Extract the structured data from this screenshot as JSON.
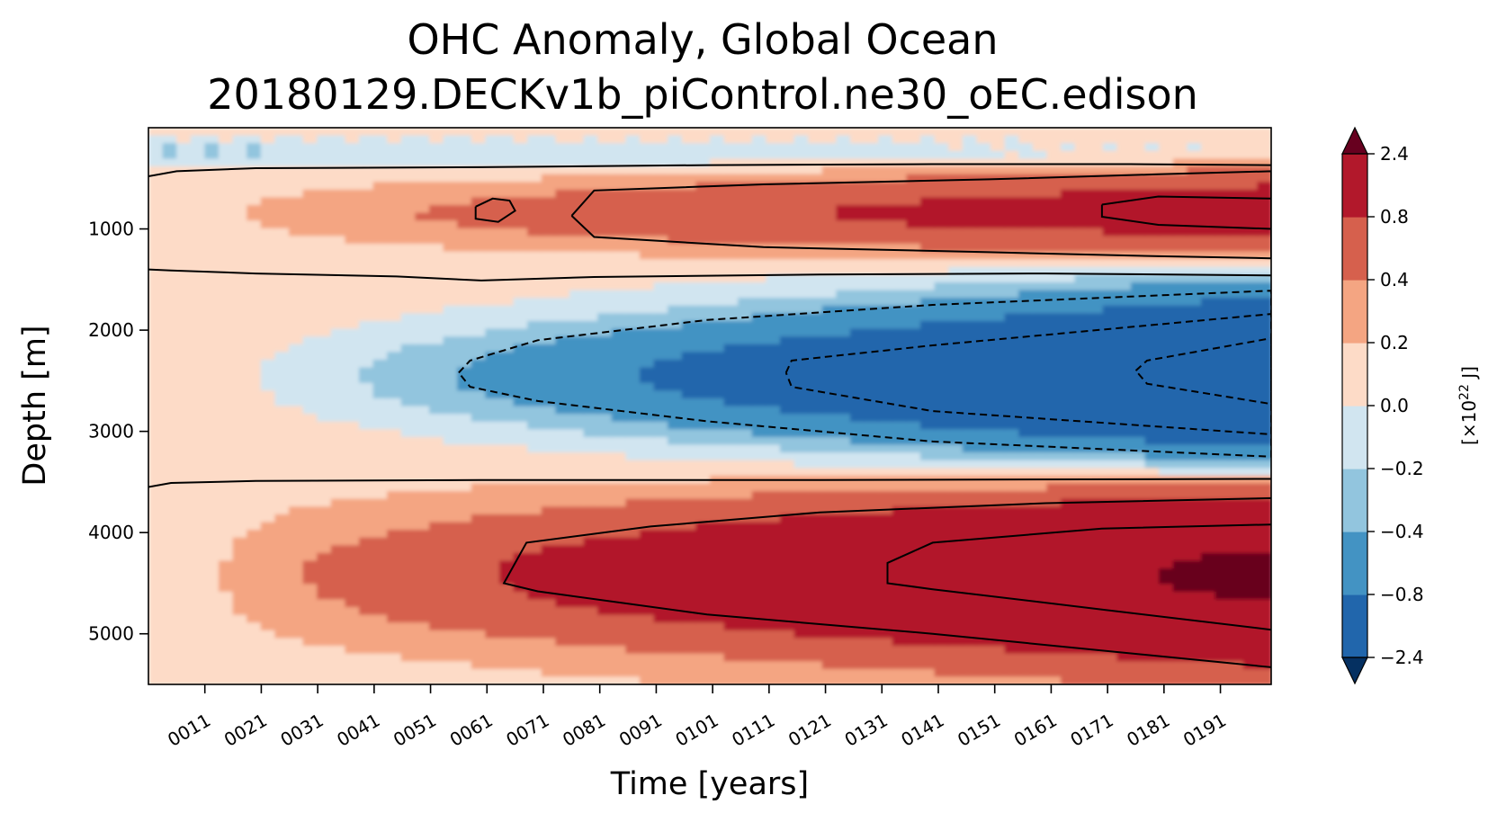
{
  "chart_data": {
    "type": "heatmap",
    "title": "OHC Anomaly, Global Ocean",
    "subtitle": "20180129.DECKv1b_piControl.ne30_oEC.edison",
    "xlabel": "Time [years]",
    "ylabel": "Depth [m]",
    "xlim": [
      1,
      200
    ],
    "ylim": [
      5500,
      0
    ],
    "x_ticks": [
      11,
      21,
      31,
      41,
      51,
      61,
      71,
      81,
      91,
      101,
      111,
      121,
      131,
      141,
      151,
      161,
      171,
      181,
      191
    ],
    "x_tick_labels": [
      "0011",
      "0021",
      "0031",
      "0041",
      "0051",
      "0061",
      "0071",
      "0081",
      "0091",
      "0101",
      "0111",
      "0121",
      "0131",
      "0141",
      "0151",
      "0161",
      "0171",
      "0181",
      "0191"
    ],
    "y_ticks": [
      1000,
      2000,
      3000,
      4000,
      5000
    ],
    "y_tick_labels": [
      "1000",
      "2000",
      "3000",
      "4000",
      "5000"
    ],
    "colorbar": {
      "label_base": "[×10",
      "label_exp": "22",
      "label_unit": " J]",
      "levels": [
        -2.4,
        -0.8,
        -0.4,
        -0.2,
        0.0,
        0.2,
        0.4,
        0.8,
        2.4
      ],
      "level_labels": [
        "−2.4",
        "−0.8",
        "−0.4",
        "−0.2",
        "0.0",
        "0.2",
        "0.4",
        "0.8",
        "2.4"
      ],
      "colors": [
        "#2166ac",
        "#4393c3",
        "#92c5de",
        "#d1e5f0",
        "#fddbc7",
        "#f4a582",
        "#d6604d",
        "#b2182b"
      ],
      "under_color": "#053061",
      "over_color": "#67001f"
    },
    "contour_lines": [
      {
        "style": "solid",
        "level": 0.0,
        "points": [
          [
            1,
            480
          ],
          [
            6,
            430
          ],
          [
            20,
            400
          ],
          [
            60,
            390
          ],
          [
            100,
            370
          ],
          [
            140,
            360
          ],
          [
            175,
            360
          ],
          [
            200,
            370
          ]
        ]
      },
      {
        "style": "solid",
        "level": 0.0,
        "points": [
          [
            1,
            1400
          ],
          [
            5,
            1410
          ],
          [
            20,
            1440
          ],
          [
            45,
            1470
          ],
          [
            60,
            1510
          ],
          [
            80,
            1475
          ],
          [
            120,
            1450
          ],
          [
            160,
            1440
          ],
          [
            200,
            1460
          ]
        ]
      },
      {
        "style": "solid",
        "level": 0.0,
        "points": [
          [
            1,
            3550
          ],
          [
            5,
            3510
          ],
          [
            20,
            3490
          ],
          [
            60,
            3480
          ],
          [
            120,
            3480
          ],
          [
            200,
            3470
          ]
        ]
      },
      {
        "style": "solid",
        "level": 0.8,
        "points": [
          [
            76,
            870
          ],
          [
            80,
            620
          ],
          [
            110,
            560
          ],
          [
            150,
            510
          ],
          [
            180,
            460
          ],
          [
            200,
            430
          ],
          [
            200,
            1290
          ],
          [
            180,
            1270
          ],
          [
            150,
            1230
          ],
          [
            110,
            1180
          ],
          [
            80,
            1080
          ],
          [
            76,
            870
          ]
        ]
      },
      {
        "style": "solid",
        "level": 0.8,
        "points": [
          [
            59,
            780
          ],
          [
            62,
            700
          ],
          [
            65,
            720
          ],
          [
            66,
            820
          ],
          [
            63,
            930
          ],
          [
            59,
            900
          ],
          [
            59,
            780
          ]
        ]
      },
      {
        "style": "solid",
        "level": 2.4,
        "points": [
          [
            170,
            760
          ],
          [
            180,
            680
          ],
          [
            200,
            700
          ],
          [
            200,
            1000
          ],
          [
            180,
            960
          ],
          [
            170,
            880
          ],
          [
            170,
            760
          ]
        ]
      },
      {
        "style": "dashed",
        "level": -0.8,
        "points": [
          [
            56,
            2420
          ],
          [
            58,
            2300
          ],
          [
            70,
            2100
          ],
          [
            100,
            1900
          ],
          [
            140,
            1750
          ],
          [
            200,
            1610
          ],
          [
            200,
            3250
          ],
          [
            140,
            3100
          ],
          [
            100,
            2900
          ],
          [
            70,
            2700
          ],
          [
            58,
            2560
          ],
          [
            56,
            2420
          ]
        ]
      },
      {
        "style": "dashed",
        "level": -2.4,
        "points": [
          [
            114,
            2420
          ],
          [
            115,
            2300
          ],
          [
            140,
            2150
          ],
          [
            200,
            1840
          ],
          [
            200,
            3030
          ],
          [
            140,
            2800
          ],
          [
            115,
            2560
          ],
          [
            114,
            2420
          ]
        ]
      },
      {
        "style": "dashed",
        "level": -2.4,
        "points": [
          [
            176,
            2400
          ],
          [
            178,
            2300
          ],
          [
            200,
            2080
          ],
          [
            200,
            2730
          ],
          [
            178,
            2530
          ],
          [
            176,
            2400
          ]
        ]
      },
      {
        "style": "solid",
        "level": 0.8,
        "points": [
          [
            200,
            3660
          ],
          [
            160,
            3710
          ],
          [
            120,
            3800
          ],
          [
            90,
            3940
          ],
          [
            68,
            4100
          ],
          [
            64,
            4500
          ],
          [
            70,
            4580
          ],
          [
            100,
            4810
          ],
          [
            140,
            5000
          ],
          [
            200,
            5330
          ]
        ]
      },
      {
        "style": "solid",
        "level": 2.4,
        "points": [
          [
            200,
            3920
          ],
          [
            170,
            3960
          ],
          [
            140,
            4100
          ],
          [
            132,
            4300
          ],
          [
            132,
            4500
          ],
          [
            140,
            4560
          ],
          [
            170,
            4760
          ],
          [
            200,
            4960
          ]
        ]
      }
    ]
  }
}
